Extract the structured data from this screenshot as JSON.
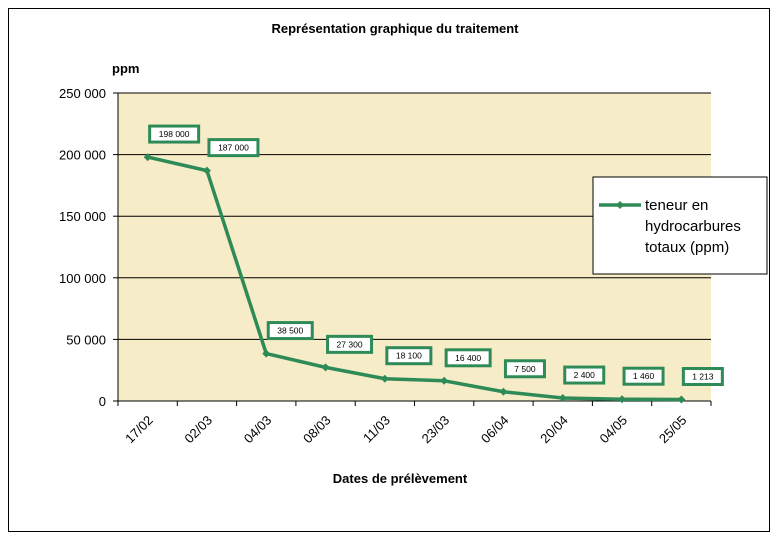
{
  "chart_data": {
    "type": "line",
    "title": "Représentation graphique du traitement",
    "ylabel": "ppm",
    "xlabel": "Dates de prélèvement",
    "ylim": [
      0,
      250000
    ],
    "yticks": [
      0,
      50000,
      100000,
      150000,
      200000,
      250000
    ],
    "ytick_labels": [
      "0",
      "50 000",
      "100 000",
      "150 000",
      "200 000",
      "250 000"
    ],
    "categories": [
      "17/02",
      "02/03",
      "04/03",
      "08/03",
      "11/03",
      "23/03",
      "06/04",
      "20/04",
      "04/05",
      "25/05"
    ],
    "grid": true,
    "legend_position": "right",
    "series": [
      {
        "name": "teneur en hydrocarbures totaux (ppm)",
        "name_lines": [
          "teneur en",
          "hydrocarbures",
          "totaux (ppm)"
        ],
        "color": "#2e8b57",
        "values": [
          198000,
          187000,
          38500,
          27300,
          18100,
          16400,
          7500,
          2400,
          1460,
          1213
        ],
        "data_labels": [
          "198 000",
          "187 000",
          "38 500",
          "27 300",
          "18 100",
          "16 400",
          "7 500",
          "2 400",
          "1 460",
          "1 213"
        ]
      }
    ],
    "colors": {
      "plot_background": "#f7ecc8",
      "line": "#2e8b57",
      "label_border": "#2e8b57"
    }
  }
}
